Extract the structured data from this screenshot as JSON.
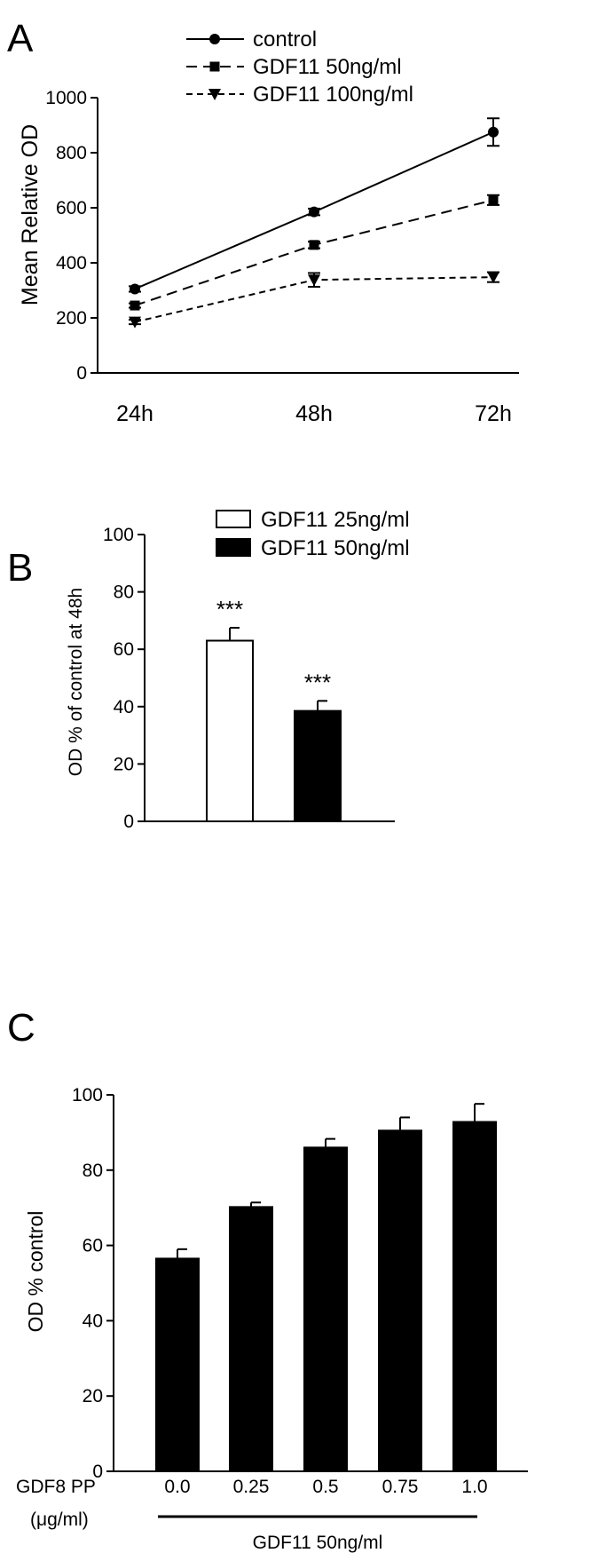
{
  "chart_data": [
    {
      "panel": "A",
      "type": "line",
      "title": "",
      "xlabel": "",
      "ylabel": "Mean Relative OD",
      "categories": [
        "24h",
        "48h",
        "72h"
      ],
      "ylim": [
        0,
        1000
      ],
      "yticks": [
        0,
        200,
        400,
        600,
        800,
        1000
      ],
      "legend_position": "top-center",
      "series": [
        {
          "name": "control",
          "values": [
            305,
            585,
            875
          ],
          "errors": [
            10,
            12,
            50
          ],
          "marker": "circle",
          "line": "solid"
        },
        {
          "name": "GDF11 50ng/ml",
          "values": [
            245,
            465,
            628
          ],
          "errors": [
            8,
            12,
            18
          ],
          "marker": "square",
          "line": "dashed"
        },
        {
          "name": "GDF11 100ng/ml",
          "values": [
            185,
            338,
            348
          ],
          "errors": [
            8,
            25,
            18
          ],
          "marker": "triangle-down",
          "line": "short-dashed"
        }
      ]
    },
    {
      "panel": "B",
      "type": "bar",
      "title": "",
      "xlabel": "",
      "ylabel": "OD % of control at 48h",
      "ylim": [
        0,
        100
      ],
      "yticks": [
        0,
        20,
        40,
        60,
        80,
        100
      ],
      "legend_position": "top-center",
      "series": [
        {
          "name": "GDF11 25ng/ml",
          "value": 63,
          "error": 4.5,
          "fill": "#ffffff",
          "annotation": "***"
        },
        {
          "name": "GDF11 50ng/ml",
          "value": 38.5,
          "error": 3.5,
          "fill": "#000000",
          "annotation": "***"
        }
      ]
    },
    {
      "panel": "C",
      "type": "bar",
      "title": "",
      "xlabel": "GDF11 50ng/ml",
      "ylabel": "OD % control",
      "xaxis_name": "GDF8 PP",
      "xaxis_unit": "(μg/ml)",
      "categories": [
        "0.0",
        "0.25",
        "0.5",
        "0.75",
        "1.0"
      ],
      "values": [
        56.5,
        70.2,
        86,
        90.5,
        92.8
      ],
      "errors": [
        2.5,
        1.2,
        2.3,
        3.5,
        4.8
      ],
      "ylim": [
        0,
        100
      ],
      "yticks": [
        0,
        20,
        40,
        60,
        80,
        100
      ],
      "fill": "#000000"
    }
  ]
}
